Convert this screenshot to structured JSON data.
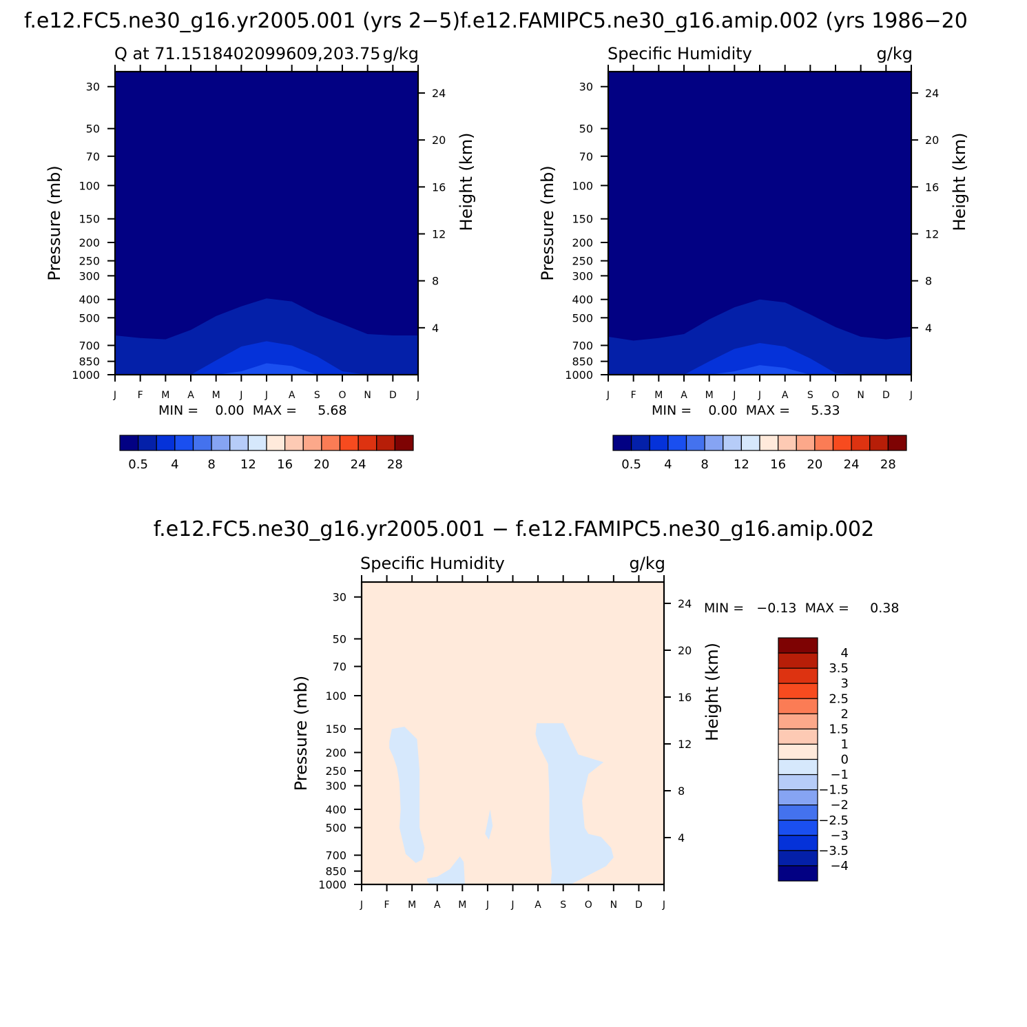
{
  "panels": [
    {
      "id": "panel-1",
      "title": "f.e12.FC5.ne30_g16.yr2005.001 (yrs 2-5)",
      "left_string": "Q at 71.1518402099609,203.75",
      "right_string": "g/kg",
      "min_max": "MIN =    0.00  MAX =     5.68",
      "colorbar_labels": [
        "0.5",
        "4",
        "8",
        "12",
        "16",
        "20",
        "24",
        "28"
      ]
    },
    {
      "id": "panel-2",
      "title": "f.e12.FAMIPC5.ne30_g16.amip.002 (yrs 1986-20",
      "left_string": "Specific Humidity",
      "right_string": "g/kg",
      "min_max": "MIN =    0.00  MAX =     5.33",
      "colorbar_labels": [
        "0.5",
        "4",
        "8",
        "12",
        "16",
        "20",
        "24",
        "28"
      ]
    },
    {
      "id": "panel-3",
      "title": "f.e12.FC5.ne30_g16.yr2005.001 - f.e12.FAMIPC5.ne30_g16.amip.002",
      "left_string": "Specific Humidity",
      "right_string": "g/kg",
      "min_max": "MIN =   -0.13  MAX =     0.38",
      "colorbar_labels": [
        "4",
        "3.5",
        "3",
        "2.5",
        "2",
        "1.5",
        "1",
        "0",
        "-1",
        "-1.5",
        "-2",
        "-2.5",
        "-3",
        "-3.5",
        "-4"
      ]
    }
  ],
  "axes": {
    "ylabel_left": "Pressure (mb)",
    "ylabel_right": "Height (km)",
    "pressure_ticks": [
      "30",
      "50",
      "70",
      "100",
      "150",
      "200",
      "250",
      "300",
      "400",
      "500",
      "700",
      "850",
      "1000"
    ],
    "height_ticks": [
      "24",
      "20",
      "16",
      "12",
      "8",
      "4"
    ],
    "month_ticks": [
      "J",
      "F",
      "M",
      "A",
      "M",
      "J",
      "J",
      "A",
      "S",
      "O",
      "N",
      "D",
      "J"
    ]
  },
  "colors": {
    "abs_scale": [
      "#020183",
      "#0420a9",
      "#0532d9",
      "#1a4ff0",
      "#4472ee",
      "#86a4f3",
      "#b6ccf8",
      "#d6e8fc",
      "#ffeadb",
      "#fdcab4",
      "#fca88a",
      "#fb7c55",
      "#f74b1f",
      "#dd3311",
      "#b71e08",
      "#7e0303"
    ],
    "diff_scale": [
      "#7e0303",
      "#b71e08",
      "#dd3311",
      "#f74b1f",
      "#fb7c55",
      "#fca88a",
      "#fdcab4",
      "#ffeadb",
      "#d6e8fc",
      "#b6ccf8",
      "#86a4f3",
      "#4472ee",
      "#1a4ff0",
      "#0532d9",
      "#0420a9",
      "#020183"
    ],
    "diff_background": "#ffeadb",
    "diff_negative": "#d6e8fc"
  },
  "chart_data": [
    {
      "type": "heatmap",
      "subtype": "filled-contour",
      "x": [
        "J",
        "F",
        "M",
        "A",
        "M",
        "J",
        "J",
        "A",
        "S",
        "O",
        "N",
        "D",
        "J"
      ],
      "y_pressure_mb": [
        30,
        50,
        70,
        100,
        150,
        200,
        250,
        300,
        400,
        500,
        700,
        850,
        1000
      ],
      "y_height_km": [
        24,
        20,
        16,
        12,
        8,
        4
      ],
      "ylim_mb": [
        25,
        1000
      ],
      "colorbar_levels": [
        0.5,
        4,
        8,
        12,
        16,
        20,
        24,
        28
      ],
      "contours_mb": [
        {
          "level": 0.5,
          "p": [
            620,
            640,
            650,
            580,
            490,
            435,
            395,
            410,
            480,
            540,
            610,
            620,
            620
          ]
        },
        {
          "level": 1.0,
          "p": [
            1000,
            1000,
            1000,
            1000,
            840,
            710,
            665,
            700,
            800,
            960,
            1000,
            1000,
            1000
          ]
        },
        {
          "level": 2.0,
          "p": [
            1000,
            1000,
            1000,
            1000,
            1000,
            960,
            870,
            900,
            1000,
            1000,
            1000,
            1000,
            1000
          ]
        }
      ],
      "min": 0.0,
      "max": 5.68
    },
    {
      "type": "heatmap",
      "subtype": "filled-contour",
      "x": [
        "J",
        "F",
        "M",
        "A",
        "M",
        "J",
        "J",
        "A",
        "S",
        "O",
        "N",
        "D",
        "J"
      ],
      "y_pressure_mb": [
        30,
        50,
        70,
        100,
        150,
        200,
        250,
        300,
        400,
        500,
        700,
        850,
        1000
      ],
      "y_height_km": [
        24,
        20,
        16,
        12,
        8,
        4
      ],
      "ylim_mb": [
        25,
        1000
      ],
      "colorbar_levels": [
        0.5,
        4,
        8,
        12,
        16,
        20,
        24,
        28
      ],
      "contours_mb": [
        {
          "level": 0.5,
          "p": [
            630,
            660,
            640,
            610,
            510,
            440,
            400,
            415,
            480,
            560,
            630,
            650,
            630
          ]
        },
        {
          "level": 1.0,
          "p": [
            1000,
            1000,
            1000,
            1000,
            850,
            730,
            680,
            710,
            820,
            980,
            1000,
            1000,
            1000
          ]
        },
        {
          "level": 2.0,
          "p": [
            1000,
            1000,
            1000,
            1000,
            1000,
            960,
            890,
            920,
            1000,
            1000,
            1000,
            1000,
            1000
          ]
        }
      ],
      "min": 0.0,
      "max": 5.33
    },
    {
      "type": "heatmap",
      "subtype": "filled-contour",
      "x": [
        "J",
        "F",
        "M",
        "A",
        "M",
        "J",
        "J",
        "A",
        "S",
        "O",
        "N",
        "D",
        "J"
      ],
      "y_pressure_mb": [
        30,
        50,
        70,
        100,
        150,
        200,
        250,
        300,
        400,
        500,
        700,
        850,
        1000
      ],
      "y_height_km": [
        24,
        20,
        16,
        12,
        8,
        4
      ],
      "ylim_mb": [
        25,
        1000
      ],
      "colorbar_levels": [
        4,
        3.5,
        3,
        2.5,
        2,
        1.5,
        1,
        0,
        -1,
        -1.5,
        -2,
        -2.5,
        -3,
        -3.5,
        -4
      ],
      "negative_regions": [
        {
          "name": "feb-mar",
          "pts": [
            [
              1.1,
              175
            ],
            [
              1.2,
              150
            ],
            [
              1.7,
              146
            ],
            [
              2.2,
              170
            ],
            [
              2.3,
              250
            ],
            [
              2.3,
              500
            ],
            [
              2.5,
              640
            ],
            [
              2.4,
              740
            ],
            [
              2.15,
              770
            ],
            [
              1.75,
              690
            ],
            [
              1.5,
              500
            ],
            [
              1.55,
              400
            ],
            [
              1.5,
              290
            ],
            [
              1.4,
              240
            ],
            [
              1.25,
              210
            ],
            [
              1.1,
              190
            ]
          ]
        },
        {
          "name": "apr-may",
          "pts": [
            [
              2.6,
              930
            ],
            [
              3.0,
              910
            ],
            [
              3.5,
              830
            ],
            [
              3.9,
              710
            ],
            [
              4.05,
              760
            ],
            [
              4.1,
              1000
            ],
            [
              2.7,
              1000
            ],
            [
              2.6,
              960
            ]
          ]
        },
        {
          "name": "jun-spot",
          "pts": [
            [
              4.9,
              540
            ],
            [
              5.1,
              400
            ],
            [
              5.2,
              490
            ],
            [
              5.05,
              580
            ]
          ]
        },
        {
          "name": "aug-nov",
          "pts": [
            [
              6.95,
              140
            ],
            [
              8.0,
              140
            ],
            [
              8.6,
              205
            ],
            [
              9.6,
              225
            ],
            [
              9.0,
              260
            ],
            [
              8.75,
              360
            ],
            [
              8.85,
              500
            ],
            [
              9.0,
              540
            ],
            [
              9.5,
              560
            ],
            [
              9.9,
              640
            ],
            [
              10.0,
              720
            ],
            [
              9.7,
              800
            ],
            [
              8.3,
              1000
            ],
            [
              7.5,
              1000
            ],
            [
              7.55,
              860
            ],
            [
              7.5,
              750
            ],
            [
              7.45,
              540
            ],
            [
              7.45,
              330
            ],
            [
              7.4,
              230
            ],
            [
              7.0,
              180
            ],
            [
              6.9,
              160
            ]
          ]
        }
      ],
      "min": -0.13,
      "max": 0.38
    }
  ]
}
